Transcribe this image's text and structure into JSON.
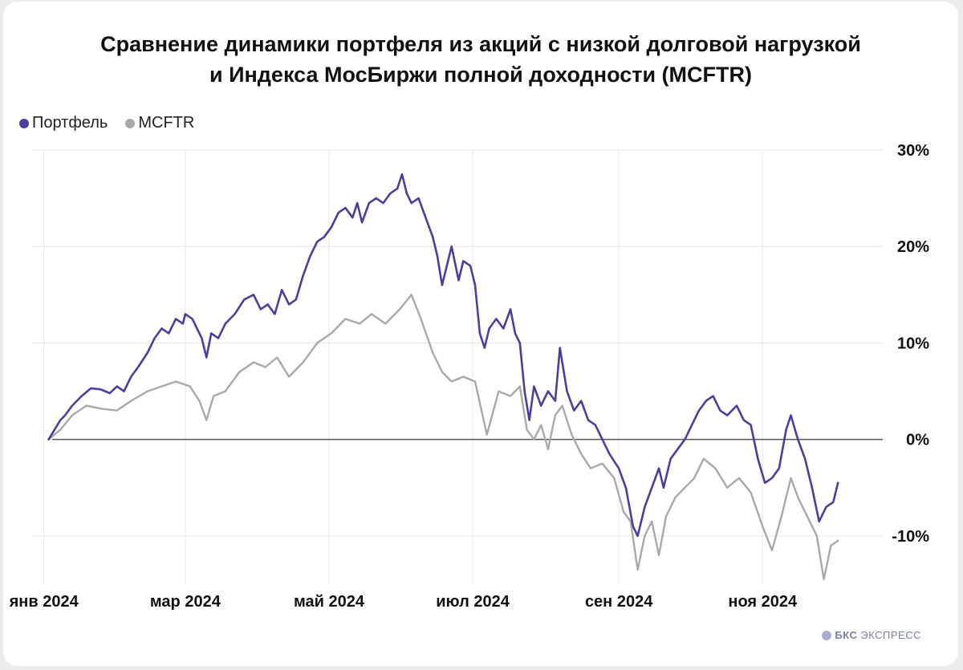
{
  "brand": {
    "bold": "БКС",
    "rest": "ЭКСПРЕСС"
  },
  "chart_data": {
    "type": "line",
    "title_lines": [
      "Сравнение динамики портфеля из акций с низкой долговой нагрузкой",
      "и Индекса МосБиржи полной доходности (MCFTR)"
    ],
    "legend_placement": "top-left",
    "grid": true,
    "x_type": "date",
    "xlim": [
      "2023-12-27",
      "2024-12-22"
    ],
    "ylim": [
      -15,
      30
    ],
    "y_ticks": [
      30,
      20,
      10,
      0,
      -10
    ],
    "y_tick_labels": [
      "30%",
      "20%",
      "10%",
      "0%",
      "-10%"
    ],
    "x_ticks": [
      "2024-01-01",
      "2024-03-01",
      "2024-05-01",
      "2024-07-01",
      "2024-09-01",
      "2024-11-01"
    ],
    "x_tick_labels": [
      "янв 2024",
      "мар 2024",
      "май 2024",
      "июл 2024",
      "сен 2024",
      "ноя 2024"
    ],
    "series": [
      {
        "name": "Портфель",
        "color": "#4b3f9e",
        "points": [
          [
            "2024-01-03",
            0
          ],
          [
            "2024-01-08",
            2
          ],
          [
            "2024-01-10",
            2.5
          ],
          [
            "2024-01-13",
            3.5
          ],
          [
            "2024-01-17",
            4.5
          ],
          [
            "2024-01-21",
            5.3
          ],
          [
            "2024-01-25",
            5.2
          ],
          [
            "2024-01-29",
            4.8
          ],
          [
            "2024-02-01",
            5.5
          ],
          [
            "2024-02-04",
            5.0
          ],
          [
            "2024-02-07",
            6.5
          ],
          [
            "2024-02-10",
            7.5
          ],
          [
            "2024-02-14",
            9.0
          ],
          [
            "2024-02-17",
            10.5
          ],
          [
            "2024-02-20",
            11.5
          ],
          [
            "2024-02-23",
            11.0
          ],
          [
            "2024-02-26",
            12.5
          ],
          [
            "2024-02-29",
            12.0
          ],
          [
            "2024-03-01",
            13.0
          ],
          [
            "2024-03-04",
            12.5
          ],
          [
            "2024-03-06",
            11.5
          ],
          [
            "2024-03-08",
            10.5
          ],
          [
            "2024-03-10",
            8.5
          ],
          [
            "2024-03-12",
            11.0
          ],
          [
            "2024-03-15",
            10.5
          ],
          [
            "2024-03-18",
            12.0
          ],
          [
            "2024-03-22",
            13.0
          ],
          [
            "2024-03-26",
            14.5
          ],
          [
            "2024-03-30",
            15.0
          ],
          [
            "2024-04-02",
            13.5
          ],
          [
            "2024-04-05",
            14.0
          ],
          [
            "2024-04-08",
            13.0
          ],
          [
            "2024-04-11",
            15.5
          ],
          [
            "2024-04-14",
            14.0
          ],
          [
            "2024-04-17",
            14.5
          ],
          [
            "2024-04-20",
            17.0
          ],
          [
            "2024-04-23",
            19.0
          ],
          [
            "2024-04-26",
            20.5
          ],
          [
            "2024-04-29",
            21.0
          ],
          [
            "2024-05-02",
            22.0
          ],
          [
            "2024-05-05",
            23.5
          ],
          [
            "2024-05-08",
            24.0
          ],
          [
            "2024-05-11",
            23.0
          ],
          [
            "2024-05-13",
            24.5
          ],
          [
            "2024-05-15",
            22.5
          ],
          [
            "2024-05-18",
            24.5
          ],
          [
            "2024-05-21",
            25.0
          ],
          [
            "2024-05-24",
            24.5
          ],
          [
            "2024-05-27",
            25.5
          ],
          [
            "2024-05-30",
            26.0
          ],
          [
            "2024-06-01",
            27.5
          ],
          [
            "2024-06-03",
            25.5
          ],
          [
            "2024-06-05",
            24.5
          ],
          [
            "2024-06-08",
            25.0
          ],
          [
            "2024-06-11",
            23.0
          ],
          [
            "2024-06-14",
            21.0
          ],
          [
            "2024-06-16",
            19.0
          ],
          [
            "2024-06-18",
            16.0
          ],
          [
            "2024-06-20",
            18.0
          ],
          [
            "2024-06-22",
            20.0
          ],
          [
            "2024-06-25",
            16.5
          ],
          [
            "2024-06-27",
            18.5
          ],
          [
            "2024-06-30",
            18.0
          ],
          [
            "2024-07-02",
            16.0
          ],
          [
            "2024-07-04",
            11.0
          ],
          [
            "2024-07-06",
            9.5
          ],
          [
            "2024-07-08",
            11.5
          ],
          [
            "2024-07-11",
            12.5
          ],
          [
            "2024-07-14",
            11.5
          ],
          [
            "2024-07-17",
            13.5
          ],
          [
            "2024-07-19",
            11.0
          ],
          [
            "2024-07-21",
            10.0
          ],
          [
            "2024-07-23",
            5.0
          ],
          [
            "2024-07-25",
            2.0
          ],
          [
            "2024-07-27",
            5.5
          ],
          [
            "2024-07-30",
            3.5
          ],
          [
            "2024-08-02",
            5.0
          ],
          [
            "2024-08-05",
            4.0
          ],
          [
            "2024-08-07",
            9.5
          ],
          [
            "2024-08-10",
            5.0
          ],
          [
            "2024-08-13",
            3.0
          ],
          [
            "2024-08-16",
            4.0
          ],
          [
            "2024-08-19",
            2.0
          ],
          [
            "2024-08-22",
            1.5
          ],
          [
            "2024-08-25",
            0.0
          ],
          [
            "2024-08-28",
            -1.5
          ],
          [
            "2024-09-01",
            -3.0
          ],
          [
            "2024-09-04",
            -5.0
          ],
          [
            "2024-09-07",
            -9.0
          ],
          [
            "2024-09-09",
            -10.0
          ],
          [
            "2024-09-12",
            -7.0
          ],
          [
            "2024-09-15",
            -5.0
          ],
          [
            "2024-09-18",
            -3.0
          ],
          [
            "2024-09-20",
            -5.0
          ],
          [
            "2024-09-23",
            -2.0
          ],
          [
            "2024-09-26",
            -1.0
          ],
          [
            "2024-09-29",
            0.0
          ],
          [
            "2024-10-02",
            1.5
          ],
          [
            "2024-10-05",
            3.0
          ],
          [
            "2024-10-08",
            4.0
          ],
          [
            "2024-10-11",
            4.5
          ],
          [
            "2024-10-14",
            3.0
          ],
          [
            "2024-10-17",
            2.5
          ],
          [
            "2024-10-21",
            3.5
          ],
          [
            "2024-10-24",
            2.0
          ],
          [
            "2024-10-27",
            1.5
          ],
          [
            "2024-10-30",
            -2.0
          ],
          [
            "2024-11-02",
            -4.5
          ],
          [
            "2024-11-05",
            -4.0
          ],
          [
            "2024-11-08",
            -3.0
          ],
          [
            "2024-11-11",
            1.0
          ],
          [
            "2024-11-13",
            2.5
          ],
          [
            "2024-11-16",
            0.0
          ],
          [
            "2024-11-19",
            -2.0
          ],
          [
            "2024-11-22",
            -5.0
          ],
          [
            "2024-11-25",
            -8.5
          ],
          [
            "2024-11-28",
            -7.0
          ],
          [
            "2024-12-01",
            -6.5
          ],
          [
            "2024-12-03",
            -4.5
          ]
        ]
      },
      {
        "name": "MCFTR",
        "color": "#a9a9a9",
        "points": [
          [
            "2024-01-03",
            0
          ],
          [
            "2024-01-08",
            1.0
          ],
          [
            "2024-01-13",
            2.5
          ],
          [
            "2024-01-19",
            3.5
          ],
          [
            "2024-01-25",
            3.2
          ],
          [
            "2024-02-01",
            3.0
          ],
          [
            "2024-02-07",
            4.0
          ],
          [
            "2024-02-14",
            5.0
          ],
          [
            "2024-02-20",
            5.5
          ],
          [
            "2024-02-26",
            6.0
          ],
          [
            "2024-03-03",
            5.5
          ],
          [
            "2024-03-07",
            4.0
          ],
          [
            "2024-03-10",
            2.0
          ],
          [
            "2024-03-13",
            4.5
          ],
          [
            "2024-03-18",
            5.0
          ],
          [
            "2024-03-24",
            7.0
          ],
          [
            "2024-03-30",
            8.0
          ],
          [
            "2024-04-04",
            7.5
          ],
          [
            "2024-04-09",
            8.5
          ],
          [
            "2024-04-14",
            6.5
          ],
          [
            "2024-04-20",
            8.0
          ],
          [
            "2024-04-26",
            10.0
          ],
          [
            "2024-05-02",
            11.0
          ],
          [
            "2024-05-08",
            12.5
          ],
          [
            "2024-05-14",
            12.0
          ],
          [
            "2024-05-19",
            13.0
          ],
          [
            "2024-05-25",
            12.0
          ],
          [
            "2024-05-31",
            13.5
          ],
          [
            "2024-06-05",
            15.0
          ],
          [
            "2024-06-09",
            12.5
          ],
          [
            "2024-06-14",
            9.0
          ],
          [
            "2024-06-18",
            7.0
          ],
          [
            "2024-06-22",
            6.0
          ],
          [
            "2024-06-27",
            6.5
          ],
          [
            "2024-07-02",
            6.0
          ],
          [
            "2024-07-07",
            0.5
          ],
          [
            "2024-07-12",
            5.0
          ],
          [
            "2024-07-17",
            4.5
          ],
          [
            "2024-07-21",
            5.5
          ],
          [
            "2024-07-24",
            1.0
          ],
          [
            "2024-07-27",
            0.0
          ],
          [
            "2024-07-30",
            1.5
          ],
          [
            "2024-08-02",
            -1.0
          ],
          [
            "2024-08-05",
            2.5
          ],
          [
            "2024-08-08",
            3.5
          ],
          [
            "2024-08-12",
            0.5
          ],
          [
            "2024-08-16",
            -1.5
          ],
          [
            "2024-08-20",
            -3.0
          ],
          [
            "2024-08-25",
            -2.5
          ],
          [
            "2024-08-30",
            -4.0
          ],
          [
            "2024-09-03",
            -7.5
          ],
          [
            "2024-09-06",
            -8.5
          ],
          [
            "2024-09-09",
            -13.5
          ],
          [
            "2024-09-12",
            -10.0
          ],
          [
            "2024-09-15",
            -8.5
          ],
          [
            "2024-09-18",
            -12.0
          ],
          [
            "2024-09-21",
            -8.0
          ],
          [
            "2024-09-25",
            -6.0
          ],
          [
            "2024-09-29",
            -5.0
          ],
          [
            "2024-10-03",
            -4.0
          ],
          [
            "2024-10-07",
            -2.0
          ],
          [
            "2024-10-12",
            -3.0
          ],
          [
            "2024-10-17",
            -5.0
          ],
          [
            "2024-10-22",
            -4.0
          ],
          [
            "2024-10-27",
            -5.5
          ],
          [
            "2024-11-01",
            -9.0
          ],
          [
            "2024-11-05",
            -11.5
          ],
          [
            "2024-11-09",
            -8.0
          ],
          [
            "2024-11-13",
            -4.0
          ],
          [
            "2024-11-16",
            -6.0
          ],
          [
            "2024-11-20",
            -8.0
          ],
          [
            "2024-11-24",
            -10.0
          ],
          [
            "2024-11-27",
            -14.5
          ],
          [
            "2024-11-30",
            -11.0
          ],
          [
            "2024-12-03",
            -10.5
          ]
        ]
      }
    ]
  }
}
